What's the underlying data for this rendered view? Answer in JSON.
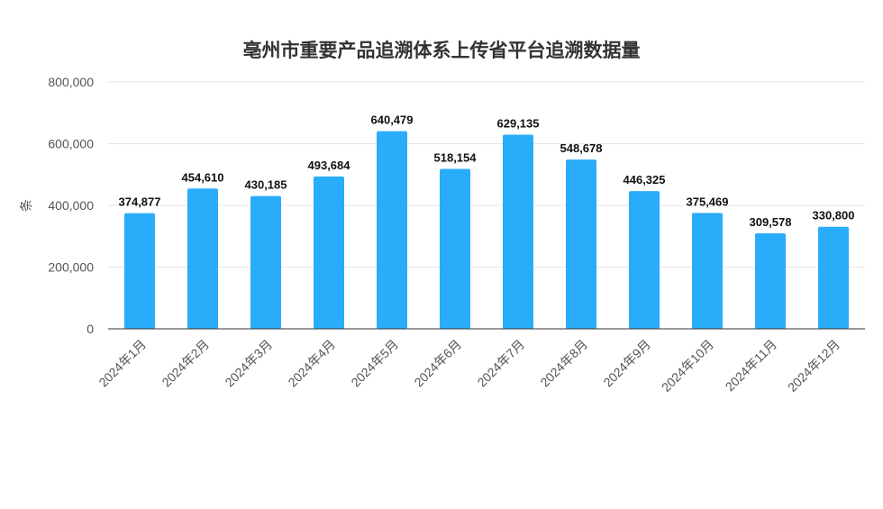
{
  "chart_data": {
    "type": "bar",
    "title": "亳州市重要产品追溯体系上传省平台追溯数据量",
    "xlabel": "",
    "ylabel": "条",
    "categories": [
      "2024年1月",
      "2024年2月",
      "2024年3月",
      "2024年4月",
      "2024年5月",
      "2024年6月",
      "2024年7月",
      "2024年8月",
      "2024年9月",
      "2024年10月",
      "2024年11月",
      "2024年12月"
    ],
    "values": [
      374877,
      454610,
      430185,
      493684,
      640479,
      518154,
      629135,
      548678,
      446325,
      375469,
      309578,
      330800
    ],
    "value_labels": [
      "374,877",
      "454,610",
      "430,185",
      "493,684",
      "640,479",
      "518,154",
      "629,135",
      "548,678",
      "446,325",
      "375,469",
      "309,578",
      "330,800"
    ],
    "ylim": [
      0,
      800000
    ],
    "yticks": [
      0,
      200000,
      400000,
      600000,
      800000
    ],
    "ytick_labels": [
      "0",
      "200,000",
      "400,000",
      "600,000",
      "800,000"
    ],
    "grid": true,
    "legend": "none",
    "bar_color": "#29adfb"
  }
}
